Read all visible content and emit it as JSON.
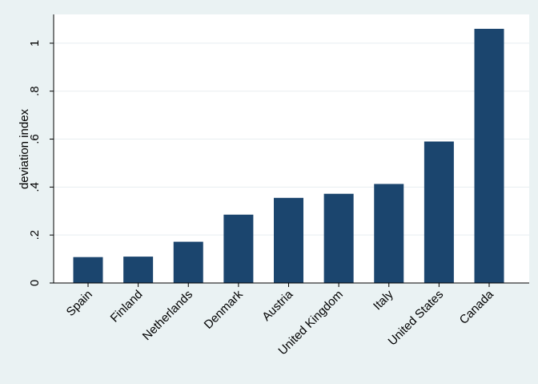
{
  "chart_data": {
    "type": "bar",
    "categories": [
      "Spain",
      "Finland",
      "Netherlands",
      "Denmark",
      "Austria",
      "United Kingdom",
      "Italy",
      "United States",
      "Canada"
    ],
    "values": [
      0.108,
      0.11,
      0.172,
      0.285,
      0.355,
      0.372,
      0.413,
      0.59,
      1.06
    ],
    "ylabel": "deviation index",
    "ylim": [
      0,
      1.12
    ],
    "yticks": [
      0,
      0.2,
      0.4,
      0.6,
      0.8,
      1
    ],
    "ytick_labels": [
      "0",
      ".2",
      ".4",
      ".6",
      ".8",
      "1"
    ],
    "grid": true,
    "colors": {
      "bar": "#1b456e",
      "plot_background": "#ffffff",
      "page_background": "#eaf2f3",
      "grid": "#e8eef0"
    }
  }
}
